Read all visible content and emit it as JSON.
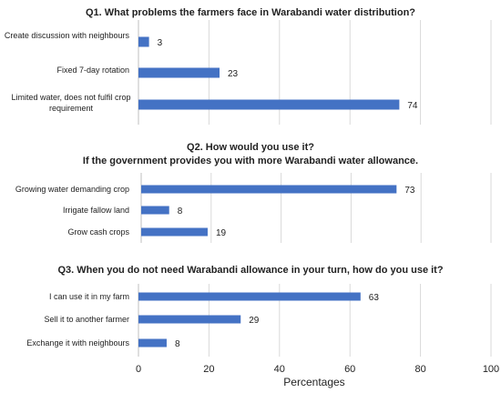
{
  "colors": {
    "bar": "#4472C4",
    "grid": "#D9D9D9",
    "text": "#222222"
  },
  "chart_data": [
    {
      "type": "bar",
      "orientation": "horizontal",
      "title": "Q1. What problems the farmers face in Warabandi water distribution?",
      "categories": [
        "Create discussion with neighbours",
        "Fixed 7-day rotation",
        "Limited water, does not fulfil crop requirement"
      ],
      "values": [
        3,
        23,
        74
      ],
      "xlim": [
        0,
        100
      ],
      "grid": true
    },
    {
      "type": "bar",
      "orientation": "horizontal",
      "title": "Q2. How would you use  it?\nIf the government provides you with more Warabandi water allowance.",
      "categories": [
        "Growing water demanding crop",
        "Irrigate fallow land",
        "Grow cash crops"
      ],
      "values": [
        73,
        8,
        19
      ],
      "xlim": [
        0,
        100
      ],
      "grid": true
    },
    {
      "type": "bar",
      "orientation": "horizontal",
      "title": "Q3. When you do not need Warabandi allowance in your turn, how do you use it?",
      "categories": [
        "I can use it in my farm",
        "Sell it to another farmer",
        "Exchange it with neighbours"
      ],
      "values": [
        63,
        29,
        8
      ],
      "xlim": [
        0,
        100
      ],
      "xticks": [
        0,
        20,
        40,
        60,
        80,
        100
      ],
      "xlabel": "Percentages",
      "grid": true
    }
  ]
}
